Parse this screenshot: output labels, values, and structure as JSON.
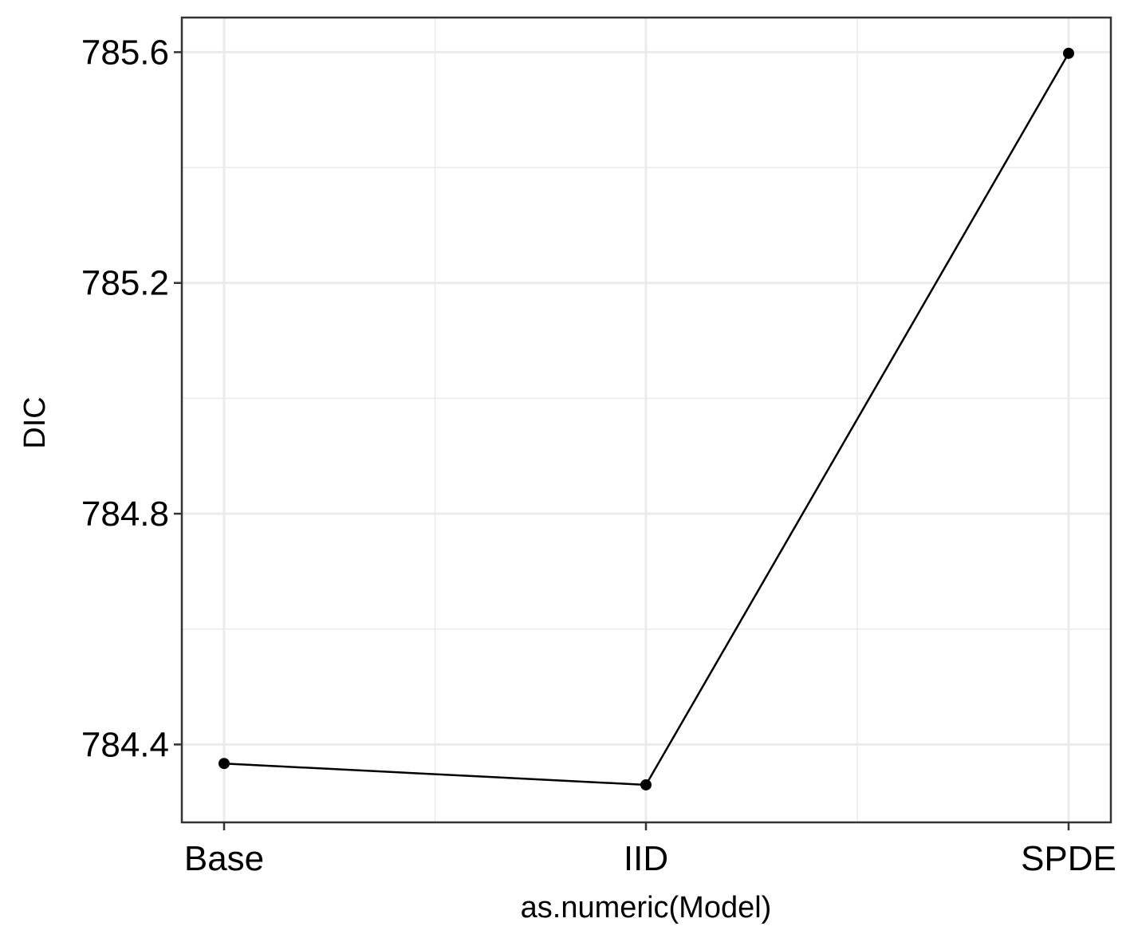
{
  "chart_data": {
    "type": "line",
    "categories": [
      "Base",
      "IID",
      "SPDE"
    ],
    "series": [
      {
        "values": [
          784.367,
          784.33,
          785.598
        ]
      }
    ],
    "xlabel": "as.numeric(Model)",
    "ylabel": "DIC",
    "ylim": [
      784.265,
      785.66
    ],
    "y_ticks": [
      784.4,
      784.8,
      785.2,
      785.6
    ],
    "y_tick_labels": [
      "784.4",
      "784.8",
      "785.2",
      "785.6"
    ],
    "y_minor_ticks": [
      784.6,
      785.0,
      785.4
    ],
    "grid": true,
    "legend": "none"
  },
  "colors": {
    "line": "#000000",
    "point": "#000000",
    "grid": "#ebebeb",
    "panel_border": "#333333",
    "background": "#ffffff"
  }
}
